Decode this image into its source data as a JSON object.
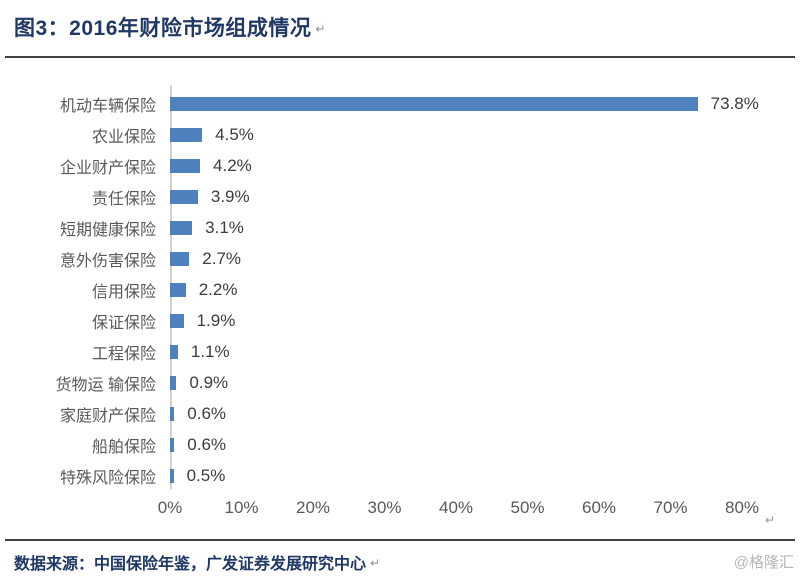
{
  "header": {
    "title": "图3：2016年财险市场组成情况",
    "return_mark": "↵"
  },
  "chart_data": {
    "type": "bar",
    "orientation": "horizontal",
    "title": "2016年财险市场组成情况",
    "categories": [
      "机动车辆保险",
      "农业保险",
      "企业财产保险",
      "责任保险",
      "短期健康保险",
      "意外伤害保险",
      "信用保险",
      "保证保险",
      "工程保险",
      "货物运 输保险",
      "家庭财产保险",
      "船舶保险",
      "特殊风险保险"
    ],
    "values": [
      73.8,
      4.5,
      4.2,
      3.9,
      3.1,
      2.7,
      2.2,
      1.9,
      1.1,
      0.9,
      0.6,
      0.6,
      0.5
    ],
    "value_labels": [
      "73.8%",
      "4.5%",
      "4.2%",
      "3.9%",
      "3.1%",
      "2.7%",
      "2.2%",
      "1.9%",
      "1.1%",
      "0.9%",
      "0.6%",
      "0.6%",
      "0.5%"
    ],
    "xlabel": "",
    "ylabel": "",
    "xlim": [
      0,
      80
    ],
    "x_ticks": [
      "0%",
      "10%",
      "20%",
      "30%",
      "40%",
      "50%",
      "60%",
      "70%",
      "80%"
    ],
    "bar_color": "#4E81BD",
    "grid": false,
    "legend": "none",
    "return_mark": "↵"
  },
  "footer": {
    "source": "数据来源：中国保险年鉴，广发证券发展研究中心",
    "return_mark": "↵",
    "watermark": "@格隆汇"
  }
}
